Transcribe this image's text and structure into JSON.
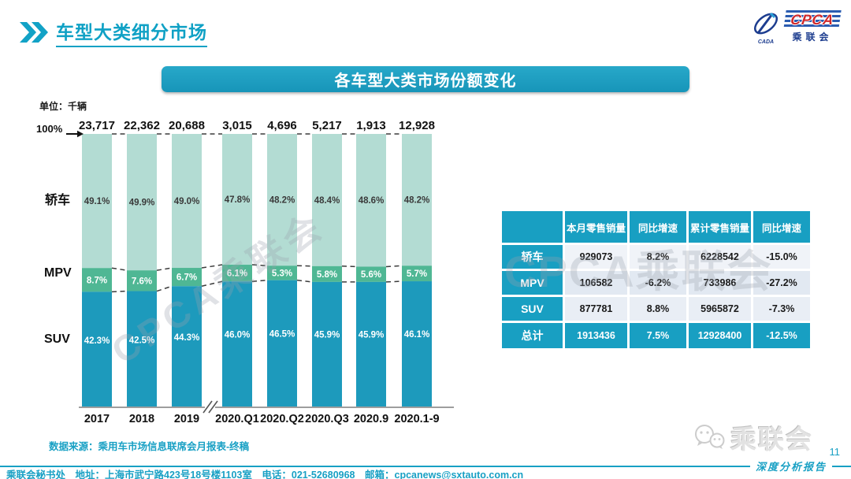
{
  "header": {
    "title": "车型大类细分市场"
  },
  "logo": {
    "acronym": "CPCA",
    "cn_name": "乘联会",
    "emblem_text": "CADA"
  },
  "banner": {
    "title": "各车型大类市场份额变化"
  },
  "colors": {
    "accent": "#189fc2",
    "sedan_bar": "#b3dcd3",
    "mpv_bar": "#4fb794",
    "suv_bar": "#1d9abc"
  },
  "chart": {
    "unit_label": "单位：千辆",
    "axis_100_label": "100%"
  },
  "chart_data": {
    "type": "bar",
    "stacked": true,
    "title": "各车型大类市场份额变化",
    "unit": "千辆",
    "categories": [
      "2017",
      "2018",
      "2019",
      "2020.Q1",
      "2020.Q2",
      "2020.Q3",
      "2020.9",
      "2020.1-9"
    ],
    "totals": [
      "23,717",
      "22,362",
      "20,688",
      "3,015",
      "4,696",
      "5,217",
      "1,913",
      "12,928"
    ],
    "ylim": [
      0,
      100
    ],
    "axis_break_after": "2019",
    "series": [
      {
        "name": "轿车",
        "values": [
          49.1,
          49.9,
          49.0,
          47.8,
          48.2,
          48.4,
          48.6,
          48.2
        ],
        "color": "#b3dcd3",
        "label_color": "#3a3a3a"
      },
      {
        "name": "MPV",
        "values": [
          8.7,
          7.6,
          6.7,
          6.1,
          5.3,
          5.8,
          5.6,
          5.7
        ],
        "color": "#4fb794",
        "label_color": "#ffffff"
      },
      {
        "name": "SUV",
        "values": [
          42.3,
          42.5,
          44.3,
          46.0,
          46.5,
          45.9,
          45.9,
          46.1
        ],
        "color": "#1d9abc",
        "label_color": "#ffffff"
      }
    ]
  },
  "table": {
    "headers": [
      "",
      "本月零售销量",
      "同比增速",
      "累计零售销量",
      "同比增速"
    ],
    "rows": [
      {
        "label": "轿车",
        "values": [
          "929073",
          "8.2%",
          "6228542",
          "-15.0%"
        ],
        "is_total": false
      },
      {
        "label": "MPV",
        "values": [
          "106582",
          "-6.2%",
          "733986",
          "-27.2%"
        ],
        "is_total": false
      },
      {
        "label": "SUV",
        "values": [
          "877781",
          "8.8%",
          "5965872",
          "-7.3%"
        ],
        "is_total": false
      },
      {
        "label": "总计",
        "values": [
          "1913436",
          "7.5%",
          "12928400",
          "-12.5%"
        ],
        "is_total": true
      }
    ]
  },
  "source": "数据来源：乘用车市场信息联席会月报表-终稿",
  "watermark": "CPCA乘联会",
  "footer": {
    "report_label": "深度分析报告",
    "page": "11",
    "brand": "乘联会",
    "info": "乘联会秘书处　地址：上海市武宁路423号18号楼1103室　电话：021-52680968　邮箱：cpcanews@sxtauto.com.cn"
  }
}
